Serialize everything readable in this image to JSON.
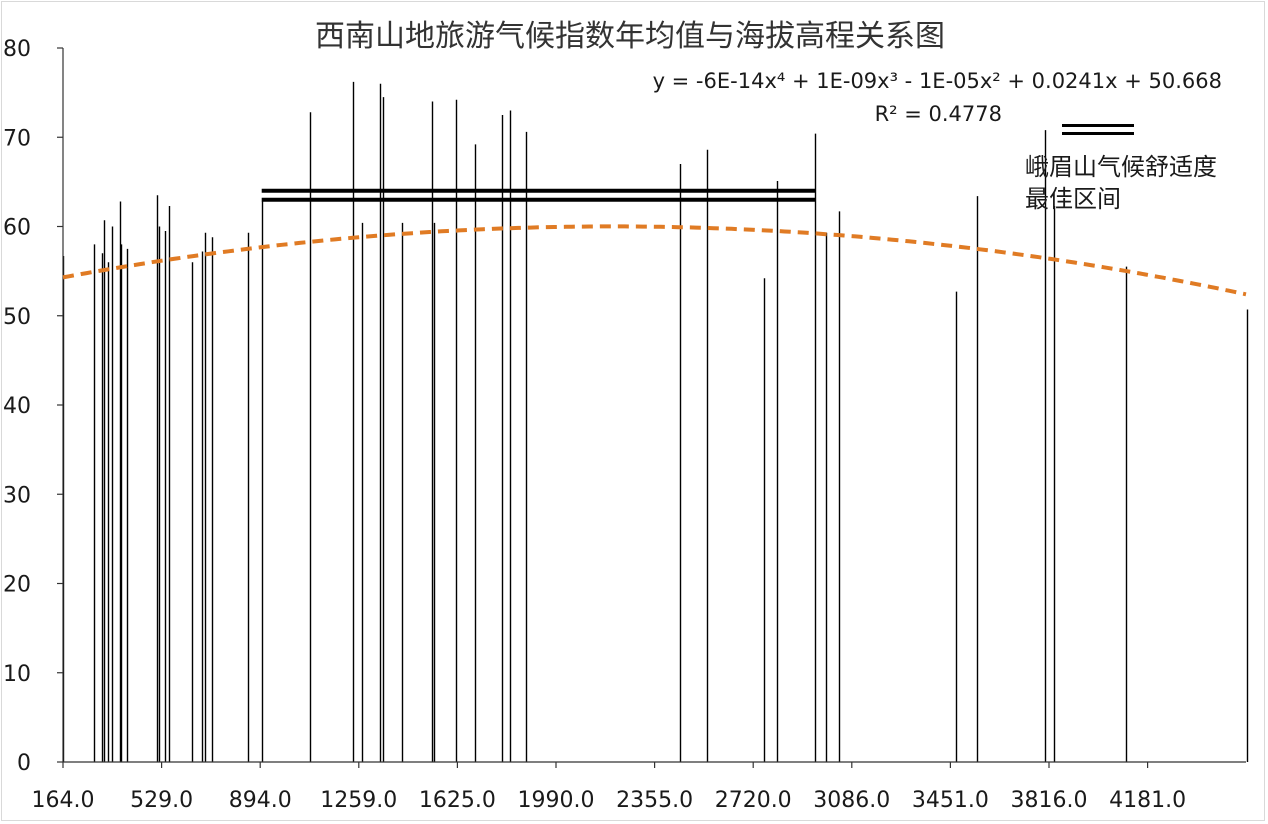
{
  "chart_data": {
    "type": "bar",
    "title": "西南山地旅游气候指数年均值与海拔高程关系图",
    "xlabel": "",
    "ylabel": "",
    "xlim": [
      164,
      4546
    ],
    "ylim": [
      0,
      80
    ],
    "y_ticks": [
      0,
      10,
      20,
      30,
      40,
      50,
      60,
      70,
      80
    ],
    "x_tick_labels": [
      "164.0",
      "529.0",
      "894.0",
      "1259.0",
      "1625.0",
      "1990.0",
      "2355.0",
      "2720.0",
      "3086.0",
      "3451.0",
      "3816.0",
      "4181.0"
    ],
    "bars": {
      "x": [
        164,
        280,
        308,
        315,
        330,
        345,
        375,
        378,
        400,
        512,
        520,
        540,
        555,
        640,
        680,
        690,
        715,
        850,
        900,
        1080,
        1240,
        1270,
        1340,
        1350,
        1420,
        1530,
        1540,
        1620,
        1690,
        1790,
        1820,
        1880,
        2450,
        2550,
        2760,
        2810,
        2950,
        2990,
        3040,
        3470,
        3550,
        3800,
        3835,
        4100,
        4550
      ],
      "values": [
        56.7,
        58.0,
        57.0,
        60.7,
        56.0,
        60.0,
        62.8,
        58.0,
        57.5,
        63.5,
        60.0,
        59.5,
        62.3,
        56.0,
        57.2,
        59.3,
        58.8,
        59.3,
        62.8,
        72.8,
        76.2,
        60.4,
        76.0,
        74.5,
        60.4,
        74.0,
        60.4,
        74.2,
        69.2,
        72.5,
        73.0,
        70.6,
        67.0,
        68.6,
        54.2,
        65.1,
        70.4,
        59.3,
        61.7,
        52.7,
        63.4,
        70.8,
        62.3,
        55.5,
        50.7
      ]
    },
    "trendline": {
      "type": "polynomial",
      "order": 4,
      "coefficients": [
        -6e-14,
        1e-09,
        -1e-05,
        0.0241,
        50.668
      ],
      "equation": "y = -6E-14x⁴ + 1E-09x³ - 1E-05x² + 0.0241x + 50.668",
      "r2": "R² = 0.4778",
      "color": "#E07B24",
      "style": "dashed"
    },
    "comfort_interval": {
      "x_range": [
        900,
        2950
      ],
      "y_values": [
        64.0,
        63.0
      ],
      "color": "#000000"
    },
    "legend": {
      "lines": [
        "峨眉山气候舒适度",
        "最佳区间"
      ],
      "position": "top-right"
    },
    "grid": false,
    "bar_color": "#000000"
  }
}
